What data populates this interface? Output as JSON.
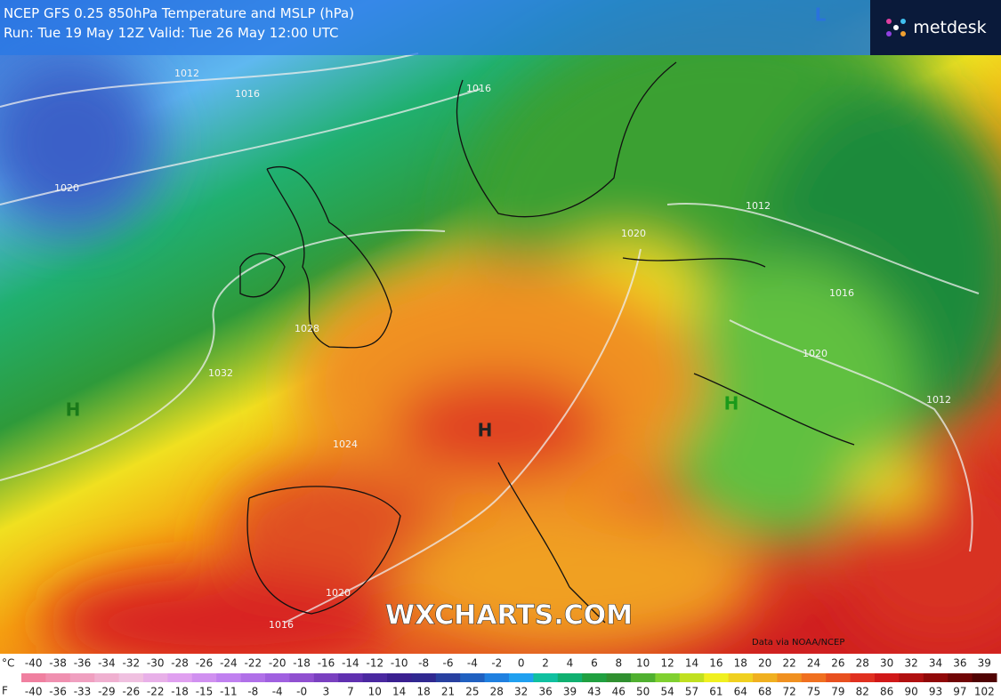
{
  "header": {
    "model": "NCEP GFS 0.25",
    "title": "850hPa Temperature and MSLP (hPa)",
    "run": "Run: Tue 19 May 12Z Valid: Tue 26 May 12:00 UTC"
  },
  "logo": "metdesk",
  "watermark": "WXCHARTS.COM",
  "credit": "Data via NOAA/NCEP",
  "pressure_systems": [
    "H",
    "H",
    "H",
    "L"
  ],
  "isobar_labels": [
    "1012",
    "1016",
    "1020",
    "1016",
    "1012",
    "1020",
    "1016",
    "1020",
    "1024",
    "1032",
    "1028",
    "1020",
    "1016",
    "1012"
  ],
  "legend": {
    "celsius_unit": "°C",
    "celsius": [
      -40,
      -38,
      -36,
      -34,
      -32,
      -30,
      -28,
      -26,
      -24,
      -22,
      -20,
      -18,
      -16,
      -14,
      -12,
      -10,
      -8,
      -6,
      -4,
      -2,
      0,
      2,
      4,
      6,
      8,
      10,
      12,
      14,
      16,
      18,
      20,
      22,
      24,
      26,
      28,
      30,
      32,
      34,
      36,
      39
    ],
    "fahrenheit_unit": "F",
    "fahrenheit": [
      -40,
      -36,
      -33,
      -29,
      -26,
      -22,
      -18,
      -15,
      -11,
      -8,
      -4,
      "-0",
      3,
      7,
      10,
      14,
      18,
      21,
      25,
      28,
      32,
      36,
      39,
      43,
      46,
      50,
      54,
      57,
      61,
      64,
      68,
      72,
      75,
      79,
      82,
      86,
      90,
      93,
      97,
      102
    ]
  }
}
